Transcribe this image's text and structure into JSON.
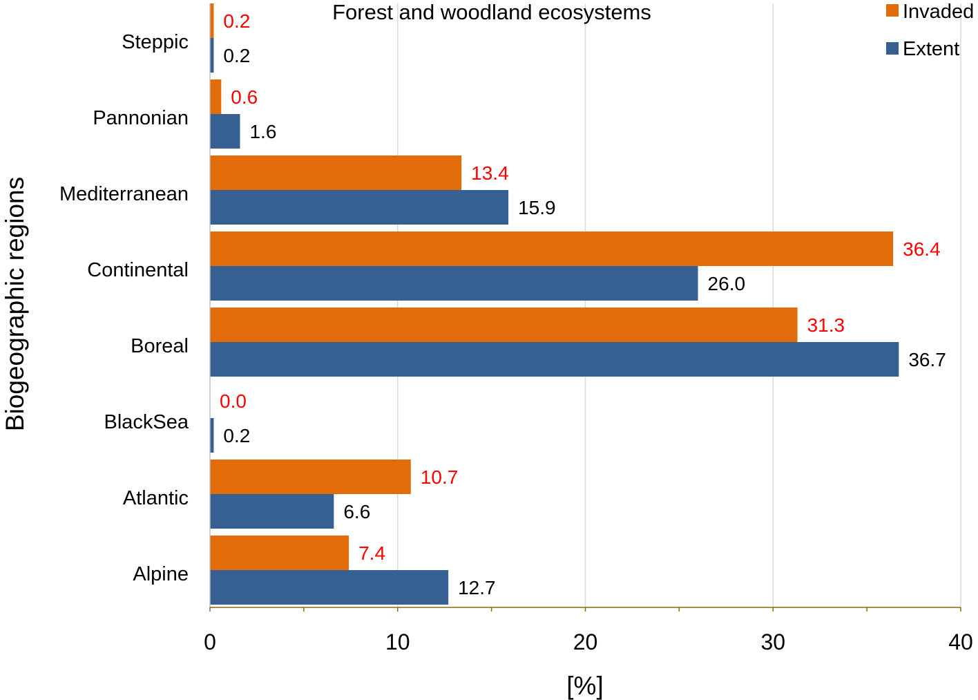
{
  "chart_data": {
    "type": "bar",
    "orientation": "horizontal",
    "title": "Forest and woodland ecosystems",
    "xlabel": "[%]",
    "ylabel": "Biogeographic regions",
    "xlim": [
      0,
      40
    ],
    "x_ticks": [
      0,
      10,
      20,
      30,
      40
    ],
    "x_tick_labels": [
      "0",
      "10",
      "20",
      "30",
      "40"
    ],
    "grid": true,
    "legend_position": "top-right",
    "categories": [
      "Steppic",
      "Pannonian",
      "Mediterranean",
      "Continental",
      "Boreal",
      "BlackSea",
      "Atlantic",
      "Alpine"
    ],
    "series": [
      {
        "name": "Invaded",
        "color": "#e36c0a",
        "label_color": "#ff0000",
        "values": [
          0.2,
          0.6,
          13.4,
          36.4,
          31.3,
          0.0,
          10.7,
          7.4
        ],
        "labels": [
          "0.2",
          "0.6",
          "13.4",
          "36.4",
          "31.3",
          "0.0",
          "10.7",
          "7.4"
        ]
      },
      {
        "name": "Extent",
        "color": "#376092",
        "label_color": "#000000",
        "values": [
          0.2,
          1.6,
          15.9,
          26.0,
          36.7,
          0.2,
          6.6,
          12.7
        ],
        "labels": [
          "0.2",
          "1.6",
          "15.9",
          "26.0",
          "36.7",
          "0.2",
          "6.6",
          "12.7"
        ]
      }
    ]
  }
}
